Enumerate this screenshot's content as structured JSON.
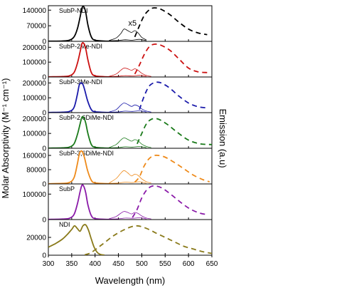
{
  "chart_data": {
    "type": "line",
    "xlabel": "Wavelength (nm)",
    "ylabel": "Molar Absorptivity (M⁻¹ cm⁻¹)",
    "y2label": "Emission (a.u)",
    "xlim": [
      300,
      650
    ],
    "xticks": [
      300,
      350,
      400,
      450,
      500,
      550,
      600,
      650
    ],
    "annotation": "x5",
    "panels": [
      {
        "label": "SubP-NDI",
        "color": "#000000",
        "ylim": [
          0,
          160000
        ],
        "yticks": [
          0,
          70000,
          140000
        ],
        "absorption": {
          "x": [
            300,
            330,
            345,
            355,
            362,
            368,
            372,
            376,
            380,
            385,
            392,
            400,
            420,
            450
          ],
          "y": [
            500,
            1500,
            5000,
            20000,
            55000,
            110000,
            150000,
            155000,
            130000,
            70000,
            20000,
            5000,
            1200,
            600
          ]
        },
        "absorption_x5": {
          "x": [
            430,
            445,
            455,
            462,
            470,
            478,
            485,
            492,
            500,
            510
          ],
          "y": [
            4000,
            15000,
            35000,
            55000,
            48000,
            40000,
            48000,
            38000,
            18000,
            6000
          ]
        },
        "absorption_x5b": {
          "x": [
            430,
            450,
            465,
            480,
            495,
            510
          ],
          "y": [
            2000,
            4000,
            7000,
            5000,
            9000,
            3000
          ]
        },
        "emission": {
          "x": [
            485,
            495,
            505,
            515,
            525,
            540,
            560,
            580,
            600,
            620,
            640
          ],
          "y": [
            20000,
            70000,
            115000,
            140000,
            150000,
            145000,
            120000,
            85000,
            55000,
            38000,
            30000
          ]
        }
      },
      {
        "label": "SubP-2Me-NDI",
        "color": "#cc1111",
        "ylim": [
          0,
          240000
        ],
        "yticks": [
          0,
          100000,
          200000
        ],
        "absorption": {
          "x": [
            300,
            330,
            345,
            355,
            362,
            368,
            372,
            376,
            380,
            385,
            392,
            400,
            420,
            450
          ],
          "y": [
            1000,
            3000,
            8000,
            30000,
            90000,
            170000,
            225000,
            225000,
            190000,
            110000,
            30000,
            8000,
            2000,
            1000
          ]
        },
        "absorption_x5": {
          "x": [
            430,
            445,
            455,
            462,
            470,
            478,
            485,
            492,
            500,
            510,
            520
          ],
          "y": [
            4000,
            20000,
            45000,
            60000,
            55000,
            45000,
            55000,
            45000,
            25000,
            10000,
            4000
          ]
        },
        "absorption_x5b": {
          "x": [
            430,
            450,
            465,
            480,
            495,
            510
          ],
          "y": [
            2000,
            5000,
            9000,
            7000,
            11000,
            4000
          ]
        },
        "emission": {
          "x": [
            485,
            495,
            505,
            515,
            525,
            540,
            560,
            580,
            600,
            620,
            640
          ],
          "y": [
            20000,
            80000,
            150000,
            200000,
            220000,
            215000,
            180000,
            120000,
            60000,
            35000,
            30000
          ]
        }
      },
      {
        "label": "SubP-3Me-NDI",
        "color": "#1a1aaa",
        "ylim": [
          0,
          240000
        ],
        "yticks": [
          0,
          100000,
          200000
        ],
        "absorption": {
          "x": [
            300,
            330,
            345,
            355,
            362,
            366,
            370,
            374,
            378,
            384,
            392,
            400,
            420,
            450
          ],
          "y": [
            1000,
            3000,
            8000,
            35000,
            120000,
            185000,
            200000,
            190000,
            150000,
            80000,
            20000,
            6000,
            2000,
            1000
          ]
        },
        "absorption_x5": {
          "x": [
            430,
            445,
            455,
            462,
            470,
            478,
            485,
            492,
            500,
            510,
            520
          ],
          "y": [
            4000,
            20000,
            50000,
            65000,
            55000,
            42000,
            52000,
            45000,
            25000,
            10000,
            4000
          ]
        },
        "absorption_x5b": {
          "x": [
            430,
            450,
            465,
            480,
            495,
            510
          ],
          "y": [
            2000,
            5000,
            10000,
            8000,
            12000,
            4000
          ]
        },
        "emission": {
          "x": [
            495,
            505,
            515,
            525,
            535,
            545,
            560,
            580,
            600,
            620,
            640
          ],
          "y": [
            20000,
            110000,
            175000,
            200000,
            205000,
            195000,
            165000,
            110000,
            65000,
            40000,
            32000
          ]
        }
      },
      {
        "label": "SubP-2,6DiMe-NDI",
        "color": "#1a7a1a",
        "ylim": [
          0,
          240000
        ],
        "yticks": [
          0,
          100000,
          200000
        ],
        "absorption": {
          "x": [
            300,
            330,
            345,
            355,
            362,
            368,
            372,
            376,
            380,
            385,
            392,
            400,
            420,
            450
          ],
          "y": [
            1000,
            3000,
            8000,
            30000,
            90000,
            165000,
            210000,
            205000,
            170000,
            95000,
            25000,
            7000,
            2000,
            1000
          ]
        },
        "absorption_x5": {
          "x": [
            430,
            445,
            455,
            462,
            470,
            478,
            485,
            492,
            500,
            510,
            520
          ],
          "y": [
            5000,
            25000,
            55000,
            70000,
            60000,
            48000,
            58000,
            50000,
            28000,
            12000,
            5000
          ]
        },
        "absorption_x5b": {
          "x": [
            430,
            450,
            465,
            480,
            495,
            510
          ],
          "y": [
            2000,
            5000,
            10000,
            8000,
            12000,
            4000
          ]
        },
        "emission": {
          "x": [
            490,
            500,
            510,
            520,
            530,
            540,
            555,
            575,
            600,
            625,
            650
          ],
          "y": [
            30000,
            100000,
            165000,
            195000,
            200000,
            190000,
            160000,
            110000,
            55000,
            30000,
            25000
          ]
        }
      },
      {
        "label": "SubP-3,6DiMe-NDI",
        "color": "#ee8a1a",
        "ylim": [
          0,
          200000
        ],
        "yticks": [
          0,
          80000,
          160000
        ],
        "absorption": {
          "x": [
            300,
            330,
            345,
            355,
            362,
            366,
            370,
            374,
            378,
            384,
            392,
            400,
            420,
            450
          ],
          "y": [
            1000,
            3000,
            8000,
            35000,
            110000,
            165000,
            185000,
            175000,
            140000,
            75000,
            20000,
            6000,
            2000,
            1000
          ]
        },
        "absorption_x5": {
          "x": [
            430,
            445,
            455,
            462,
            470,
            478,
            485,
            492,
            500,
            510,
            520
          ],
          "y": [
            5000,
            30000,
            60000,
            75000,
            62000,
            45000,
            55000,
            48000,
            28000,
            12000,
            5000
          ]
        },
        "absorption_x5b": {
          "x": [
            430,
            450,
            465,
            480,
            495,
            510
          ],
          "y": [
            2000,
            5000,
            10000,
            8000,
            12000,
            4000
          ]
        },
        "emission": {
          "x": [
            485,
            495,
            505,
            515,
            525,
            535,
            550,
            570,
            590,
            610,
            630,
            645
          ],
          "y": [
            10000,
            40000,
            100000,
            140000,
            158000,
            160000,
            150000,
            120000,
            85000,
            50000,
            25000,
            12000
          ]
        }
      },
      {
        "label": "SubP",
        "color": "#8a1aa8",
        "ylim": [
          0,
          140000
        ],
        "yticks": [
          0,
          100000
        ],
        "absorption": {
          "x": [
            300,
            330,
            345,
            355,
            362,
            368,
            372,
            376,
            380,
            385,
            392,
            400,
            420,
            450
          ],
          "y": [
            500,
            2000,
            5000,
            20000,
            60000,
            110000,
            135000,
            130000,
            105000,
            55000,
            15000,
            4000,
            1200,
            600
          ]
        },
        "absorption_x5": {
          "x": [
            430,
            445,
            455,
            462,
            470,
            478,
            485,
            492,
            500,
            510,
            520
          ],
          "y": [
            3000,
            12000,
            25000,
            32000,
            28000,
            22000,
            28000,
            24000,
            14000,
            6000,
            2500
          ]
        },
        "absorption_x5b": {
          "x": [
            430,
            450,
            465,
            480,
            495,
            510
          ],
          "y": [
            1500,
            3000,
            6000,
            5000,
            7000,
            2500
          ]
        },
        "emission": {
          "x": [
            480,
            490,
            500,
            510,
            520,
            530,
            545,
            565,
            585,
            605,
            625,
            640
          ],
          "y": [
            8000,
            40000,
            85000,
            115000,
            130000,
            132000,
            122000,
            95000,
            65000,
            40000,
            25000,
            20000
          ]
        }
      },
      {
        "label": "NDI",
        "color": "#8a7a1a",
        "ylim": [
          0,
          40000
        ],
        "yticks": [
          0,
          20000
        ],
        "absorption": {
          "x": [
            300,
            315,
            330,
            340,
            350,
            356,
            362,
            368,
            374,
            380,
            386,
            392,
            398,
            405,
            412,
            420
          ],
          "y": [
            9000,
            13000,
            18000,
            23000,
            29000,
            33000,
            30000,
            27000,
            33000,
            34000,
            28000,
            18000,
            9000,
            3000,
            800,
            200
          ]
        },
        "emission": {
          "x": [
            378,
            390,
            405,
            420,
            440,
            460,
            478,
            490,
            500,
            515,
            530,
            550,
            570,
            590,
            610,
            630,
            650
          ],
          "y": [
            500,
            2500,
            8000,
            14000,
            22000,
            28000,
            32000,
            33000,
            32000,
            29000,
            25000,
            20000,
            15000,
            10000,
            7000,
            4000,
            2000
          ]
        }
      }
    ]
  }
}
